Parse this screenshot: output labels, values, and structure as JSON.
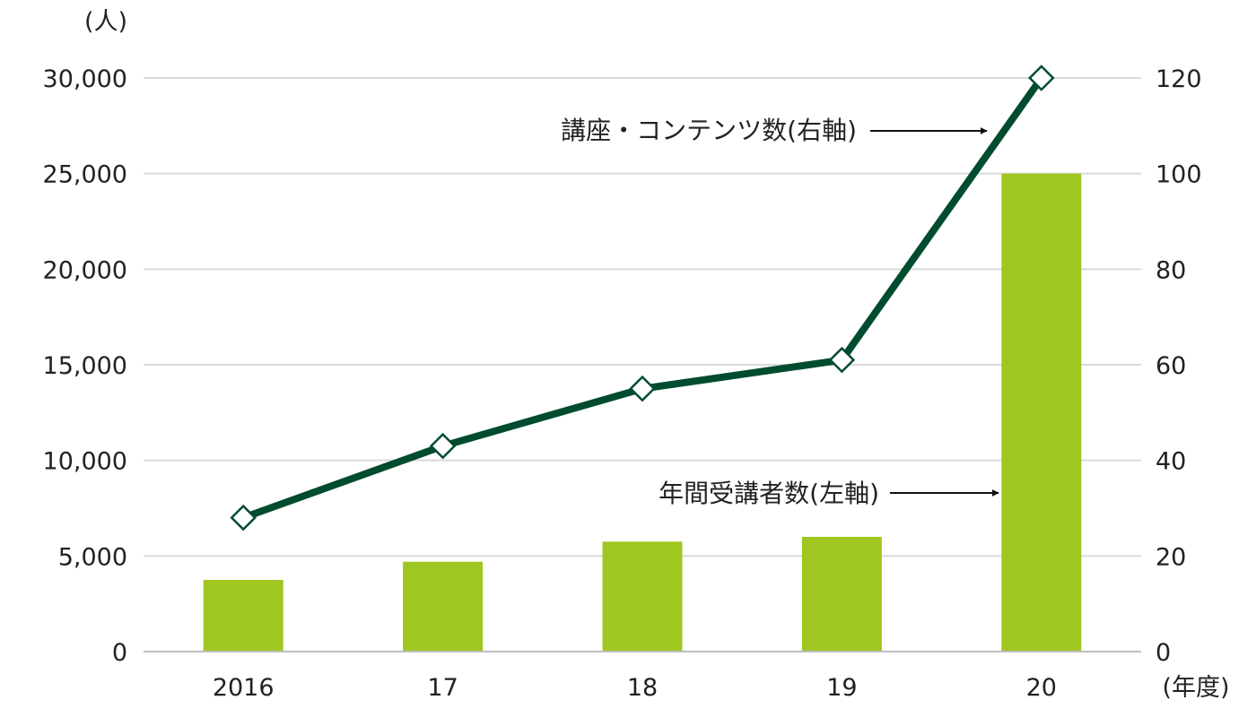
{
  "chart_data": {
    "type": "bar",
    "categories": [
      "2016",
      "17",
      "18",
      "19",
      "20"
    ],
    "series": [
      {
        "type": "bar",
        "axis": "left",
        "values": [
          3750,
          4700,
          5750,
          6000,
          25000
        ]
      },
      {
        "type": "line",
        "axis": "right",
        "values": [
          28,
          43,
          55,
          61,
          120
        ]
      }
    ],
    "left_axis": {
      "unit_label": "(人)",
      "ylim": [
        0,
        30000
      ],
      "ticks": [
        "0",
        "5,000",
        "10,000",
        "15,000",
        "20,000",
        "25,000",
        "30,000"
      ]
    },
    "right_axis": {
      "ylim": [
        0,
        120
      ],
      "ticks": [
        "0",
        "20",
        "40",
        "60",
        "80",
        "100",
        "120"
      ]
    },
    "x_unit_label": "(年度)",
    "annotations": {
      "line": "講座・コンテンツ数(右軸)",
      "bar": "年間受講者数(左軸)"
    },
    "grid": true,
    "colors": {
      "bar": "#a0c621",
      "line": "#004c2e",
      "grid": "#d9d9d9",
      "axis": "#bfbfbf",
      "text": "#222222"
    }
  }
}
